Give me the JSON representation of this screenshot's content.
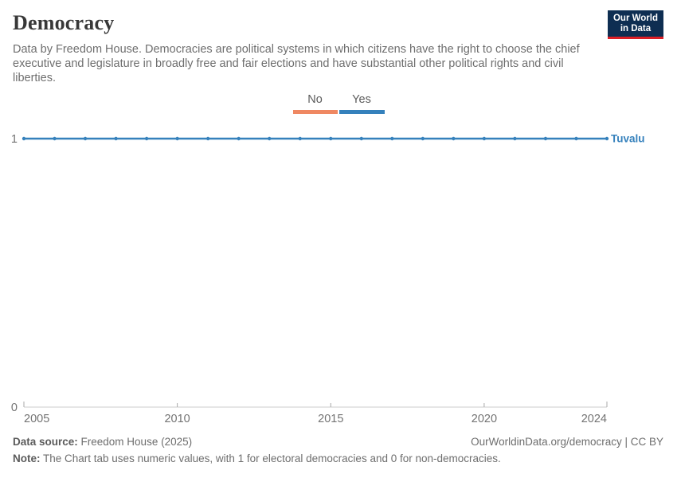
{
  "header": {
    "title": "Democracy",
    "subtitle": "Data by Freedom House. Democracies are political systems in which citizens have the right to choose the chief executive and legislature in broadly free and fair elections and have substantial other political rights and civil liberties.",
    "logo_line1": "Our World",
    "logo_line2": "in Data",
    "logo_bg": "#0e2e52",
    "logo_accent": "#dc1f26"
  },
  "legend": {
    "items": [
      {
        "label": "No",
        "color": "#ef8862"
      },
      {
        "label": "Yes",
        "color": "#3581bc"
      }
    ]
  },
  "chart_data": {
    "type": "line",
    "title": "Democracy",
    "entity": "Tuvalu",
    "series": [
      {
        "name": "Tuvalu",
        "color": "#3581bc",
        "x": [
          2005,
          2006,
          2007,
          2008,
          2009,
          2010,
          2011,
          2012,
          2013,
          2014,
          2015,
          2016,
          2017,
          2018,
          2019,
          2020,
          2021,
          2022,
          2023,
          2024
        ],
        "values": [
          1,
          1,
          1,
          1,
          1,
          1,
          1,
          1,
          1,
          1,
          1,
          1,
          1,
          1,
          1,
          1,
          1,
          1,
          1,
          1
        ]
      }
    ],
    "xlim": [
      2005,
      2024
    ],
    "ylim": [
      0,
      1
    ],
    "x_ticks": [
      2005,
      2010,
      2015,
      2020,
      2024
    ],
    "y_ticks": [
      0,
      1
    ],
    "grid": false,
    "legend_position": "top-center",
    "axis_color": "#cccccc",
    "tick_color": "#a8a8a8",
    "label_color": "#737373"
  },
  "footer": {
    "source_label": "Data source:",
    "source_text": " Freedom House (2025)",
    "note_label": "Note:",
    "note_text": " The Chart tab uses numeric values, with 1 for electoral democracies and 0 for non-democracies.",
    "right_text": "OurWorldinData.org/democracy | CC BY"
  }
}
